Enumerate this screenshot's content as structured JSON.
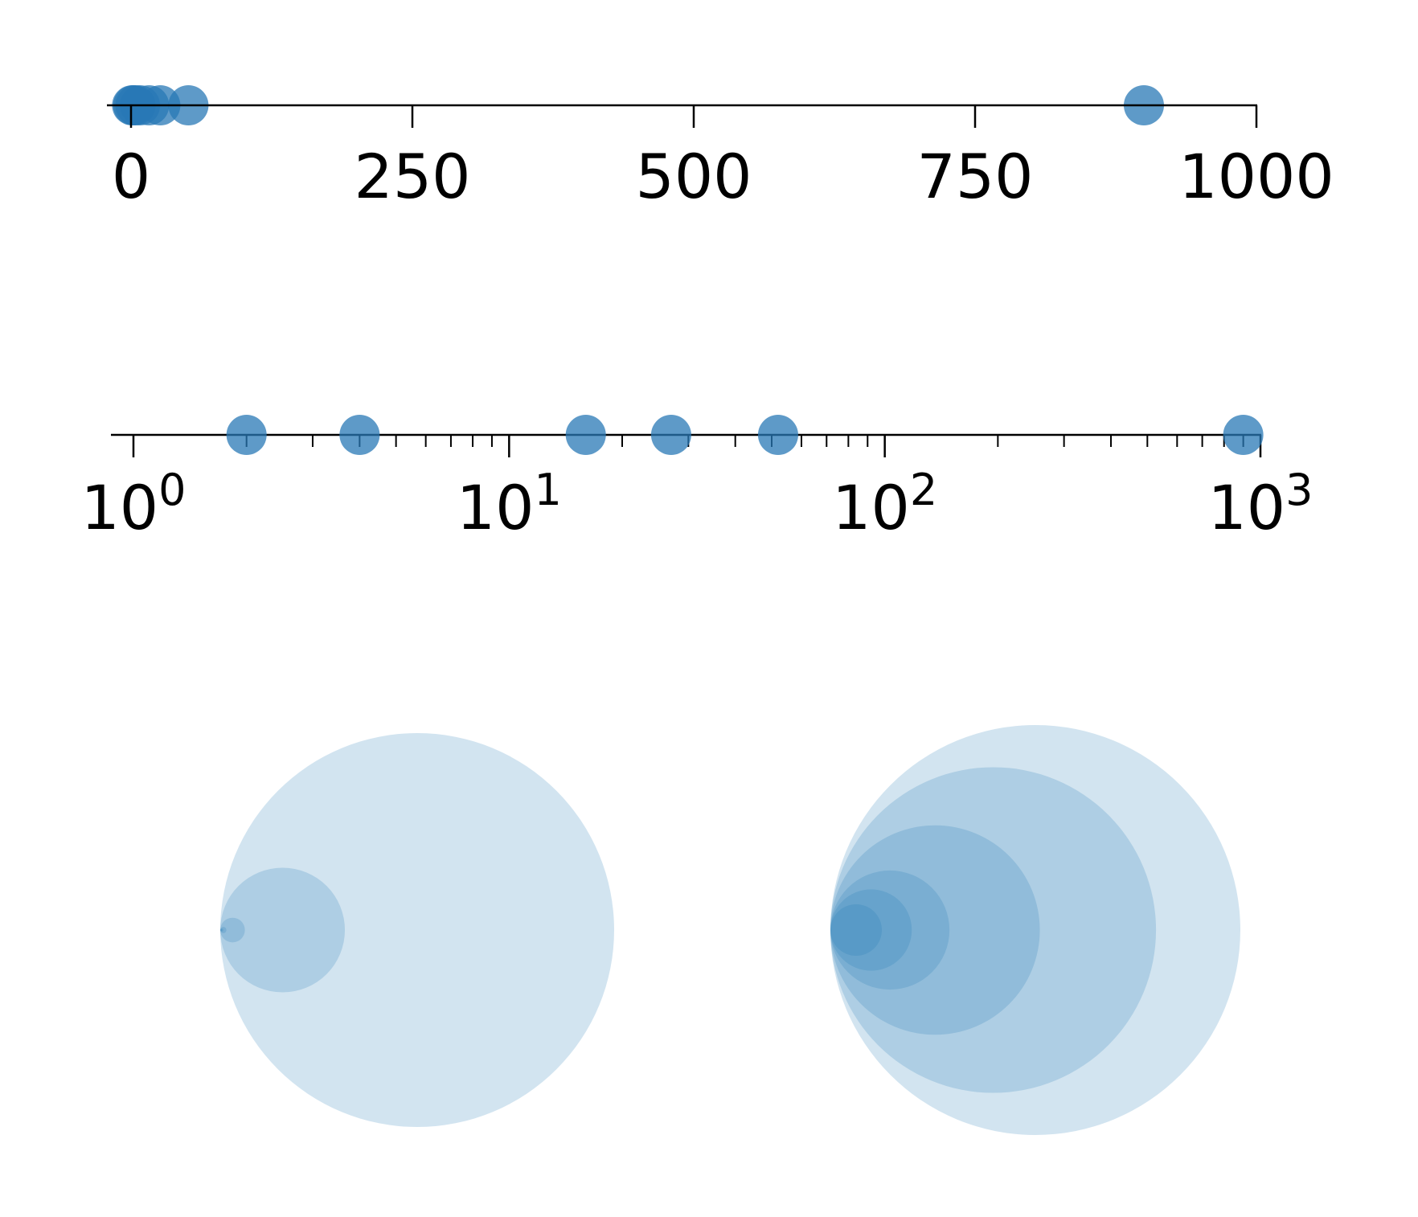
{
  "colors": {
    "point": "#2878b5",
    "axis": "#000000",
    "circle_fill": "#1f77b4"
  },
  "chart_data": [
    {
      "type": "scatter",
      "title": "",
      "xlabel": "",
      "ylabel": "",
      "scale": "linear",
      "xlim": [
        0,
        1000
      ],
      "tick_values": [
        0,
        250,
        500,
        750,
        1000
      ],
      "tick_labels": [
        "0",
        "250",
        "500",
        "750",
        "1000"
      ],
      "x": [
        1,
        2,
        4,
        8,
        16,
        26,
        51,
        900
      ]
    },
    {
      "type": "scatter",
      "title": "",
      "xlabel": "",
      "ylabel": "",
      "scale": "log",
      "xlim": [
        1,
        1000
      ],
      "tick_values": [
        1,
        10,
        100,
        1000
      ],
      "tick_labels": [
        {
          "base": "10",
          "exp": "0"
        },
        {
          "base": "10",
          "exp": "1"
        },
        {
          "base": "10",
          "exp": "2"
        },
        {
          "base": "10",
          "exp": "3"
        }
      ],
      "x": [
        2,
        4,
        16,
        27,
        52,
        900
      ]
    },
    {
      "type": "nested-circles",
      "title": "",
      "scale": "linear",
      "values": [
        1,
        2,
        4,
        16,
        81,
        256
      ]
    },
    {
      "type": "nested-circles",
      "title": "",
      "scale": "log",
      "values": [
        1,
        2,
        4,
        16,
        81,
        256
      ]
    }
  ]
}
